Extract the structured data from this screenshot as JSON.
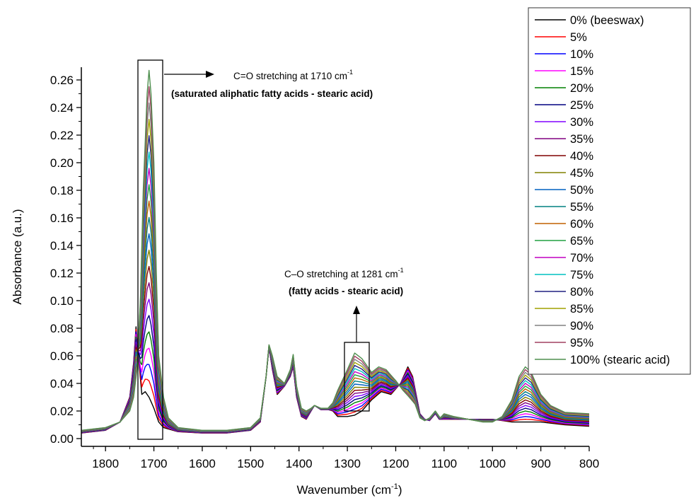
{
  "chart_data": {
    "type": "line",
    "title": "",
    "xlabel": "Wavenumber (cm",
    "xlabel_sup": "-1",
    "xlabel_suffix": ")",
    "ylabel": "Absorbance (a.u.)",
    "xlim": [
      1850,
      800
    ],
    "x_reversed": true,
    "ylim": [
      0,
      0.272
    ],
    "x_ticks": [
      1800,
      1700,
      1600,
      1500,
      1400,
      1300,
      1200,
      1100,
      1000,
      900,
      800
    ],
    "y_ticks": [
      0.0,
      0.02,
      0.04,
      0.06,
      0.08,
      0.1,
      0.12,
      0.14,
      0.16,
      0.18,
      0.2,
      0.22,
      0.24,
      0.26
    ],
    "grid": false,
    "legend_position": "top-right",
    "series": [
      {
        "name": "0% (beeswax)",
        "color": "#000000",
        "fraction": 0.0
      },
      {
        "name": "5%",
        "color": "#ff0000",
        "fraction": 0.05
      },
      {
        "name": "10%",
        "color": "#0000ff",
        "fraction": 0.1
      },
      {
        "name": "15%",
        "color": "#ff00ff",
        "fraction": 0.15
      },
      {
        "name": "20%",
        "color": "#008000",
        "fraction": 0.2
      },
      {
        "name": "25%",
        "color": "#000080",
        "fraction": 0.25
      },
      {
        "name": "30%",
        "color": "#8000ff",
        "fraction": 0.3
      },
      {
        "name": "35%",
        "color": "#800080",
        "fraction": 0.35
      },
      {
        "name": "40%",
        "color": "#800000",
        "fraction": 0.4
      },
      {
        "name": "45%",
        "color": "#808000",
        "fraction": 0.45
      },
      {
        "name": "50%",
        "color": "#0060c0",
        "fraction": 0.5
      },
      {
        "name": "55%",
        "color": "#008080",
        "fraction": 0.55
      },
      {
        "name": "60%",
        "color": "#c06000",
        "fraction": 0.6
      },
      {
        "name": "65%",
        "color": "#20a040",
        "fraction": 0.65
      },
      {
        "name": "70%",
        "color": "#c000c0",
        "fraction": 0.7
      },
      {
        "name": "75%",
        "color": "#00c0c0",
        "fraction": 0.75
      },
      {
        "name": "80%",
        "color": "#202080",
        "fraction": 0.8
      },
      {
        "name": "85%",
        "color": "#a0a000",
        "fraction": 0.85
      },
      {
        "name": "90%",
        "color": "#808080",
        "fraction": 0.9
      },
      {
        "name": "95%",
        "color": "#a04060",
        "fraction": 0.95
      },
      {
        "name": "100% (stearic acid)",
        "color": "#4f8f4f",
        "fraction": 1.0
      }
    ],
    "endpoints": {
      "beeswax": [
        [
          1850,
          0.004
        ],
        [
          1800,
          0.006
        ],
        [
          1770,
          0.012
        ],
        [
          1750,
          0.03
        ],
        [
          1742,
          0.055
        ],
        [
          1737,
          0.081
        ],
        [
          1732,
          0.06
        ],
        [
          1725,
          0.032
        ],
        [
          1718,
          0.034
        ],
        [
          1710,
          0.03
        ],
        [
          1700,
          0.022
        ],
        [
          1690,
          0.012
        ],
        [
          1680,
          0.008
        ],
        [
          1650,
          0.005
        ],
        [
          1600,
          0.004
        ],
        [
          1550,
          0.004
        ],
        [
          1500,
          0.006
        ],
        [
          1480,
          0.012
        ],
        [
          1468,
          0.045
        ],
        [
          1462,
          0.066
        ],
        [
          1455,
          0.05
        ],
        [
          1445,
          0.032
        ],
        [
          1430,
          0.038
        ],
        [
          1418,
          0.045
        ],
        [
          1412,
          0.052
        ],
        [
          1405,
          0.03
        ],
        [
          1395,
          0.016
        ],
        [
          1385,
          0.014
        ],
        [
          1375,
          0.02
        ],
        [
          1368,
          0.024
        ],
        [
          1355,
          0.021
        ],
        [
          1340,
          0.021
        ],
        [
          1330,
          0.02
        ],
        [
          1320,
          0.016
        ],
        [
          1300,
          0.016
        ],
        [
          1285,
          0.017
        ],
        [
          1270,
          0.02
        ],
        [
          1250,
          0.028
        ],
        [
          1230,
          0.034
        ],
        [
          1210,
          0.032
        ],
        [
          1190,
          0.04
        ],
        [
          1175,
          0.052
        ],
        [
          1165,
          0.045
        ],
        [
          1150,
          0.018
        ],
        [
          1140,
          0.014
        ],
        [
          1130,
          0.013
        ],
        [
          1118,
          0.018
        ],
        [
          1110,
          0.014
        ],
        [
          1100,
          0.014
        ],
        [
          1080,
          0.014
        ],
        [
          1050,
          0.014
        ],
        [
          1000,
          0.014
        ],
        [
          960,
          0.012
        ],
        [
          930,
          0.012
        ],
        [
          900,
          0.012
        ],
        [
          850,
          0.01
        ],
        [
          800,
          0.009
        ]
      ],
      "stearic": [
        [
          1850,
          0.006
        ],
        [
          1800,
          0.008
        ],
        [
          1770,
          0.012
        ],
        [
          1750,
          0.02
        ],
        [
          1742,
          0.03
        ],
        [
          1735,
          0.05
        ],
        [
          1728,
          0.1
        ],
        [
          1722,
          0.18
        ],
        [
          1714,
          0.25
        ],
        [
          1710,
          0.267
        ],
        [
          1706,
          0.25
        ],
        [
          1700,
          0.2
        ],
        [
          1695,
          0.12
        ],
        [
          1690,
          0.06
        ],
        [
          1680,
          0.03
        ],
        [
          1670,
          0.015
        ],
        [
          1650,
          0.008
        ],
        [
          1600,
          0.006
        ],
        [
          1550,
          0.006
        ],
        [
          1500,
          0.008
        ],
        [
          1480,
          0.015
        ],
        [
          1468,
          0.045
        ],
        [
          1462,
          0.068
        ],
        [
          1455,
          0.06
        ],
        [
          1445,
          0.045
        ],
        [
          1430,
          0.04
        ],
        [
          1418,
          0.05
        ],
        [
          1412,
          0.061
        ],
        [
          1405,
          0.038
        ],
        [
          1395,
          0.022
        ],
        [
          1385,
          0.02
        ],
        [
          1375,
          0.022
        ],
        [
          1368,
          0.024
        ],
        [
          1355,
          0.022
        ],
        [
          1340,
          0.022
        ],
        [
          1330,
          0.026
        ],
        [
          1320,
          0.035
        ],
        [
          1300,
          0.05
        ],
        [
          1285,
          0.062
        ],
        [
          1270,
          0.058
        ],
        [
          1250,
          0.048
        ],
        [
          1235,
          0.052
        ],
        [
          1220,
          0.05
        ],
        [
          1200,
          0.042
        ],
        [
          1185,
          0.035
        ],
        [
          1172,
          0.03
        ],
        [
          1160,
          0.025
        ],
        [
          1150,
          0.015
        ],
        [
          1140,
          0.013
        ],
        [
          1130,
          0.015
        ],
        [
          1118,
          0.02
        ],
        [
          1108,
          0.015
        ],
        [
          1100,
          0.018
        ],
        [
          1080,
          0.016
        ],
        [
          1050,
          0.014
        ],
        [
          1020,
          0.012
        ],
        [
          1000,
          0.012
        ],
        [
          980,
          0.016
        ],
        [
          960,
          0.028
        ],
        [
          945,
          0.045
        ],
        [
          932,
          0.052
        ],
        [
          920,
          0.048
        ],
        [
          900,
          0.032
        ],
        [
          880,
          0.024
        ],
        [
          850,
          0.019
        ],
        [
          800,
          0.018
        ]
      ]
    }
  },
  "annotations": {
    "co_double_text": "C=O  stretching at 1710 cm",
    "co_double_sup": "-1",
    "co_double_bold": "(saturated aliphatic fatty acids  - stearic acid)",
    "co_single_text": "C–O  stretching at 1281 cm",
    "co_single_sup": "-1",
    "co_single_bold": "(fatty acids - stearic acid)"
  }
}
